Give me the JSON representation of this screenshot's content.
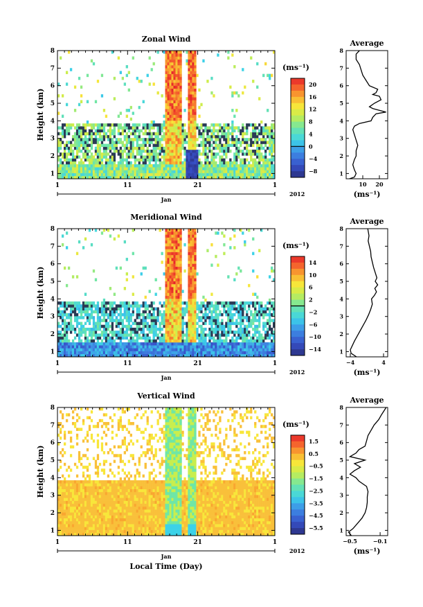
{
  "chart_data": [
    {
      "type": "heatmap",
      "title": "Zonal Wind",
      "ylabel": "Height (km)",
      "xlabel": "",
      "x_tick_labels": [
        "1",
        "11",
        "21",
        "1"
      ],
      "x_month_label": "Jan",
      "x_year_label": "2012",
      "y_ticks": [
        1,
        2,
        3,
        4,
        5,
        6,
        7,
        8
      ],
      "ylim": [
        0.7,
        8.0
      ],
      "x_day_range": [
        1,
        32
      ],
      "colorbar": {
        "unit": "(ms⁻¹)",
        "tick_labels": [
          "20",
          "16",
          "12",
          "8",
          "4",
          "0",
          "−4",
          "−8"
        ],
        "vmin": -10,
        "vmax": 22,
        "zero_line": 0
      },
      "profile": {
        "title": "Average",
        "xlabel": "(ms⁻¹)",
        "x_tick_labels": [
          "10",
          "20"
        ],
        "xlim": [
          0,
          25
        ],
        "heights": [
          0.7,
          0.8,
          1.0,
          1.2,
          1.5,
          1.8,
          2.0,
          2.3,
          2.6,
          2.9,
          3.2,
          3.5,
          3.7,
          3.85,
          4.0,
          4.2,
          4.4,
          4.5,
          4.6,
          4.7,
          4.8,
          5.0,
          5.2,
          5.4,
          5.5,
          5.6,
          5.8,
          6.0,
          6.3,
          6.6,
          6.9,
          7.2,
          7.5,
          7.8,
          8.0
        ],
        "values": [
          2,
          5,
          6,
          5,
          4,
          5,
          6,
          6,
          7,
          6,
          5,
          4,
          5,
          8,
          15,
          16,
          18,
          24,
          20,
          16,
          14,
          17,
          21,
          20,
          16,
          18,
          19,
          14,
          12,
          10,
          9,
          8,
          6,
          6,
          8
        ]
      }
    },
    {
      "type": "heatmap",
      "title": "Meridional Wind",
      "ylabel": "Height (km)",
      "xlabel": "",
      "x_tick_labels": [
        "1",
        "11",
        "21",
        "1"
      ],
      "x_month_label": "Jan",
      "x_year_label": "2012",
      "y_ticks": [
        1,
        2,
        3,
        4,
        5,
        6,
        7,
        8
      ],
      "ylim": [
        0.7,
        8.0
      ],
      "x_day_range": [
        1,
        32
      ],
      "colorbar": {
        "unit": "(ms⁻¹)",
        "tick_labels": [
          "14",
          "10",
          "6",
          "2",
          "−2",
          "−6",
          "−10",
          "−14"
        ],
        "vmin": -16,
        "vmax": 16,
        "zero_line": 0
      },
      "profile": {
        "title": "Average",
        "xlabel": "(ms⁻¹)",
        "x_tick_labels": [
          "−4",
          "4"
        ],
        "xlim": [
          -5,
          5
        ],
        "heights": [
          0.7,
          0.9,
          1.1,
          1.3,
          1.6,
          1.9,
          2.2,
          2.5,
          2.8,
          3.1,
          3.4,
          3.7,
          4.0,
          4.2,
          4.4,
          4.6,
          4.8,
          5.0,
          5.2,
          5.5,
          5.8,
          6.1,
          6.4,
          6.7,
          7.0,
          7.3,
          7.6,
          8.0
        ],
        "values": [
          -2.5,
          -3.8,
          -4.0,
          -3.6,
          -3.0,
          -2.3,
          -1.6,
          -0.9,
          -0.2,
          0.4,
          0.9,
          1.3,
          1.1,
          1.8,
          2.3,
          1.9,
          2.6,
          2.0,
          2.4,
          2.0,
          1.6,
          1.3,
          1.0,
          0.9,
          0.6,
          0.3,
          0.5,
          0.2
        ]
      }
    },
    {
      "type": "heatmap",
      "title": "Vertical Wind",
      "ylabel": "Height (km)",
      "xlabel": "Local Time (Day)",
      "x_tick_labels": [
        "1",
        "11",
        "21",
        "1"
      ],
      "x_month_label": "Jan",
      "x_year_label": "2012",
      "y_ticks": [
        1,
        2,
        3,
        4,
        5,
        6,
        7,
        8
      ],
      "ylim": [
        0.7,
        8.0
      ],
      "x_day_range": [
        1,
        32
      ],
      "colorbar": {
        "unit": "(ms⁻¹)",
        "tick_labels": [
          "1.5",
          "0.5",
          "−0.5",
          "−1.5",
          "−2.5",
          "−3.5",
          "−4.5",
          "−5.5"
        ],
        "vmin": -6,
        "vmax": 2,
        "zero_line": null
      },
      "profile": {
        "title": "Average",
        "xlabel": "(ms⁻¹)",
        "x_tick_labels": [
          "−0.5",
          "−0.1"
        ],
        "xlim": [
          -0.55,
          0.0
        ],
        "heights": [
          0.7,
          0.9,
          1.1,
          1.4,
          1.7,
          2.0,
          2.3,
          2.6,
          2.9,
          3.2,
          3.5,
          3.8,
          4.0,
          4.2,
          4.4,
          4.6,
          4.8,
          5.0,
          5.2,
          5.4,
          5.6,
          5.8,
          6.1,
          6.4,
          6.7,
          7.0,
          7.3,
          7.6,
          8.0
        ],
        "values": [
          -0.48,
          -0.52,
          -0.46,
          -0.4,
          -0.34,
          -0.3,
          -0.28,
          -0.27,
          -0.27,
          -0.26,
          -0.28,
          -0.38,
          -0.42,
          -0.5,
          -0.44,
          -0.36,
          -0.44,
          -0.3,
          -0.5,
          -0.42,
          -0.38,
          -0.3,
          -0.28,
          -0.26,
          -0.22,
          -0.18,
          -0.12,
          -0.08,
          -0.02
        ]
      }
    }
  ]
}
